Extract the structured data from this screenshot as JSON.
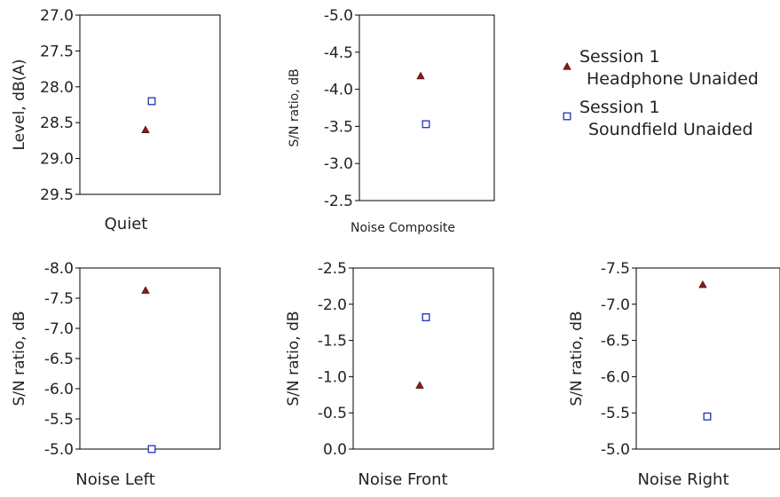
{
  "legend": [
    {
      "series": "headphone",
      "line1": "Session 1",
      "line2": "Headphone Unaided",
      "marker": "triangle",
      "color": "#8b1a1a"
    },
    {
      "series": "soundfield",
      "line1": "Session 1",
      "line2": "Soundfield Unaided",
      "marker": "square",
      "color": "#1f2fbf"
    }
  ],
  "chart_data": [
    {
      "type": "scatter",
      "xlabel": "Quiet",
      "ylabel": "Level, dB(A)",
      "ylim": [
        29.5,
        27.0
      ],
      "reversed": true,
      "yticks": [
        "27.0",
        "27.5",
        "28.0",
        "28.5",
        "29.0",
        "29.5"
      ],
      "series": [
        {
          "id": "headphone",
          "values": [
            28.6
          ]
        },
        {
          "id": "soundfield",
          "values": [
            28.2
          ]
        }
      ]
    },
    {
      "type": "scatter",
      "xlabel": "Noise Composite",
      "ylabel": "S/N ratio, dB",
      "ylim": [
        -2.5,
        -5.0
      ],
      "reversed": true,
      "yticks": [
        "-5.0",
        "-4.5",
        "-4.0",
        "-3.5",
        "-3.0",
        "-2.5"
      ],
      "series": [
        {
          "id": "headphone",
          "values": [
            -4.18
          ]
        },
        {
          "id": "soundfield",
          "values": [
            -3.53
          ]
        }
      ]
    },
    {
      "type": "scatter",
      "xlabel": "Noise Left",
      "ylabel": "S/N ratio, dB",
      "ylim": [
        -5.0,
        -8.0
      ],
      "reversed": true,
      "yticks": [
        "-8.0",
        "-7.5",
        "-7.0",
        "-6.5",
        "-6.0",
        "-5.5",
        "-5.0"
      ],
      "series": [
        {
          "id": "headphone",
          "values": [
            -7.63
          ]
        },
        {
          "id": "soundfield",
          "values": [
            -5.0
          ]
        }
      ]
    },
    {
      "type": "scatter",
      "xlabel": "Noise Front",
      "ylabel": "S/N ratio, dB",
      "ylim": [
        0.0,
        -2.5
      ],
      "reversed": true,
      "yticks": [
        "-2.5",
        "-2.0",
        "-1.5",
        "-1.0",
        "-0.5",
        "0.0"
      ],
      "series": [
        {
          "id": "headphone",
          "values": [
            -0.88
          ]
        },
        {
          "id": "soundfield",
          "values": [
            -1.82
          ]
        }
      ]
    },
    {
      "type": "scatter",
      "xlabel": "Noise Right",
      "ylabel": "S/N ratio, dB",
      "ylim": [
        -5.0,
        -7.5
      ],
      "reversed": true,
      "yticks": [
        "-7.5",
        "-7.0",
        "-6.5",
        "-6.0",
        "-5.5",
        "-5.0"
      ],
      "series": [
        {
          "id": "headphone",
          "values": [
            -7.27
          ]
        },
        {
          "id": "soundfield",
          "values": [
            -5.45
          ]
        }
      ]
    }
  ]
}
